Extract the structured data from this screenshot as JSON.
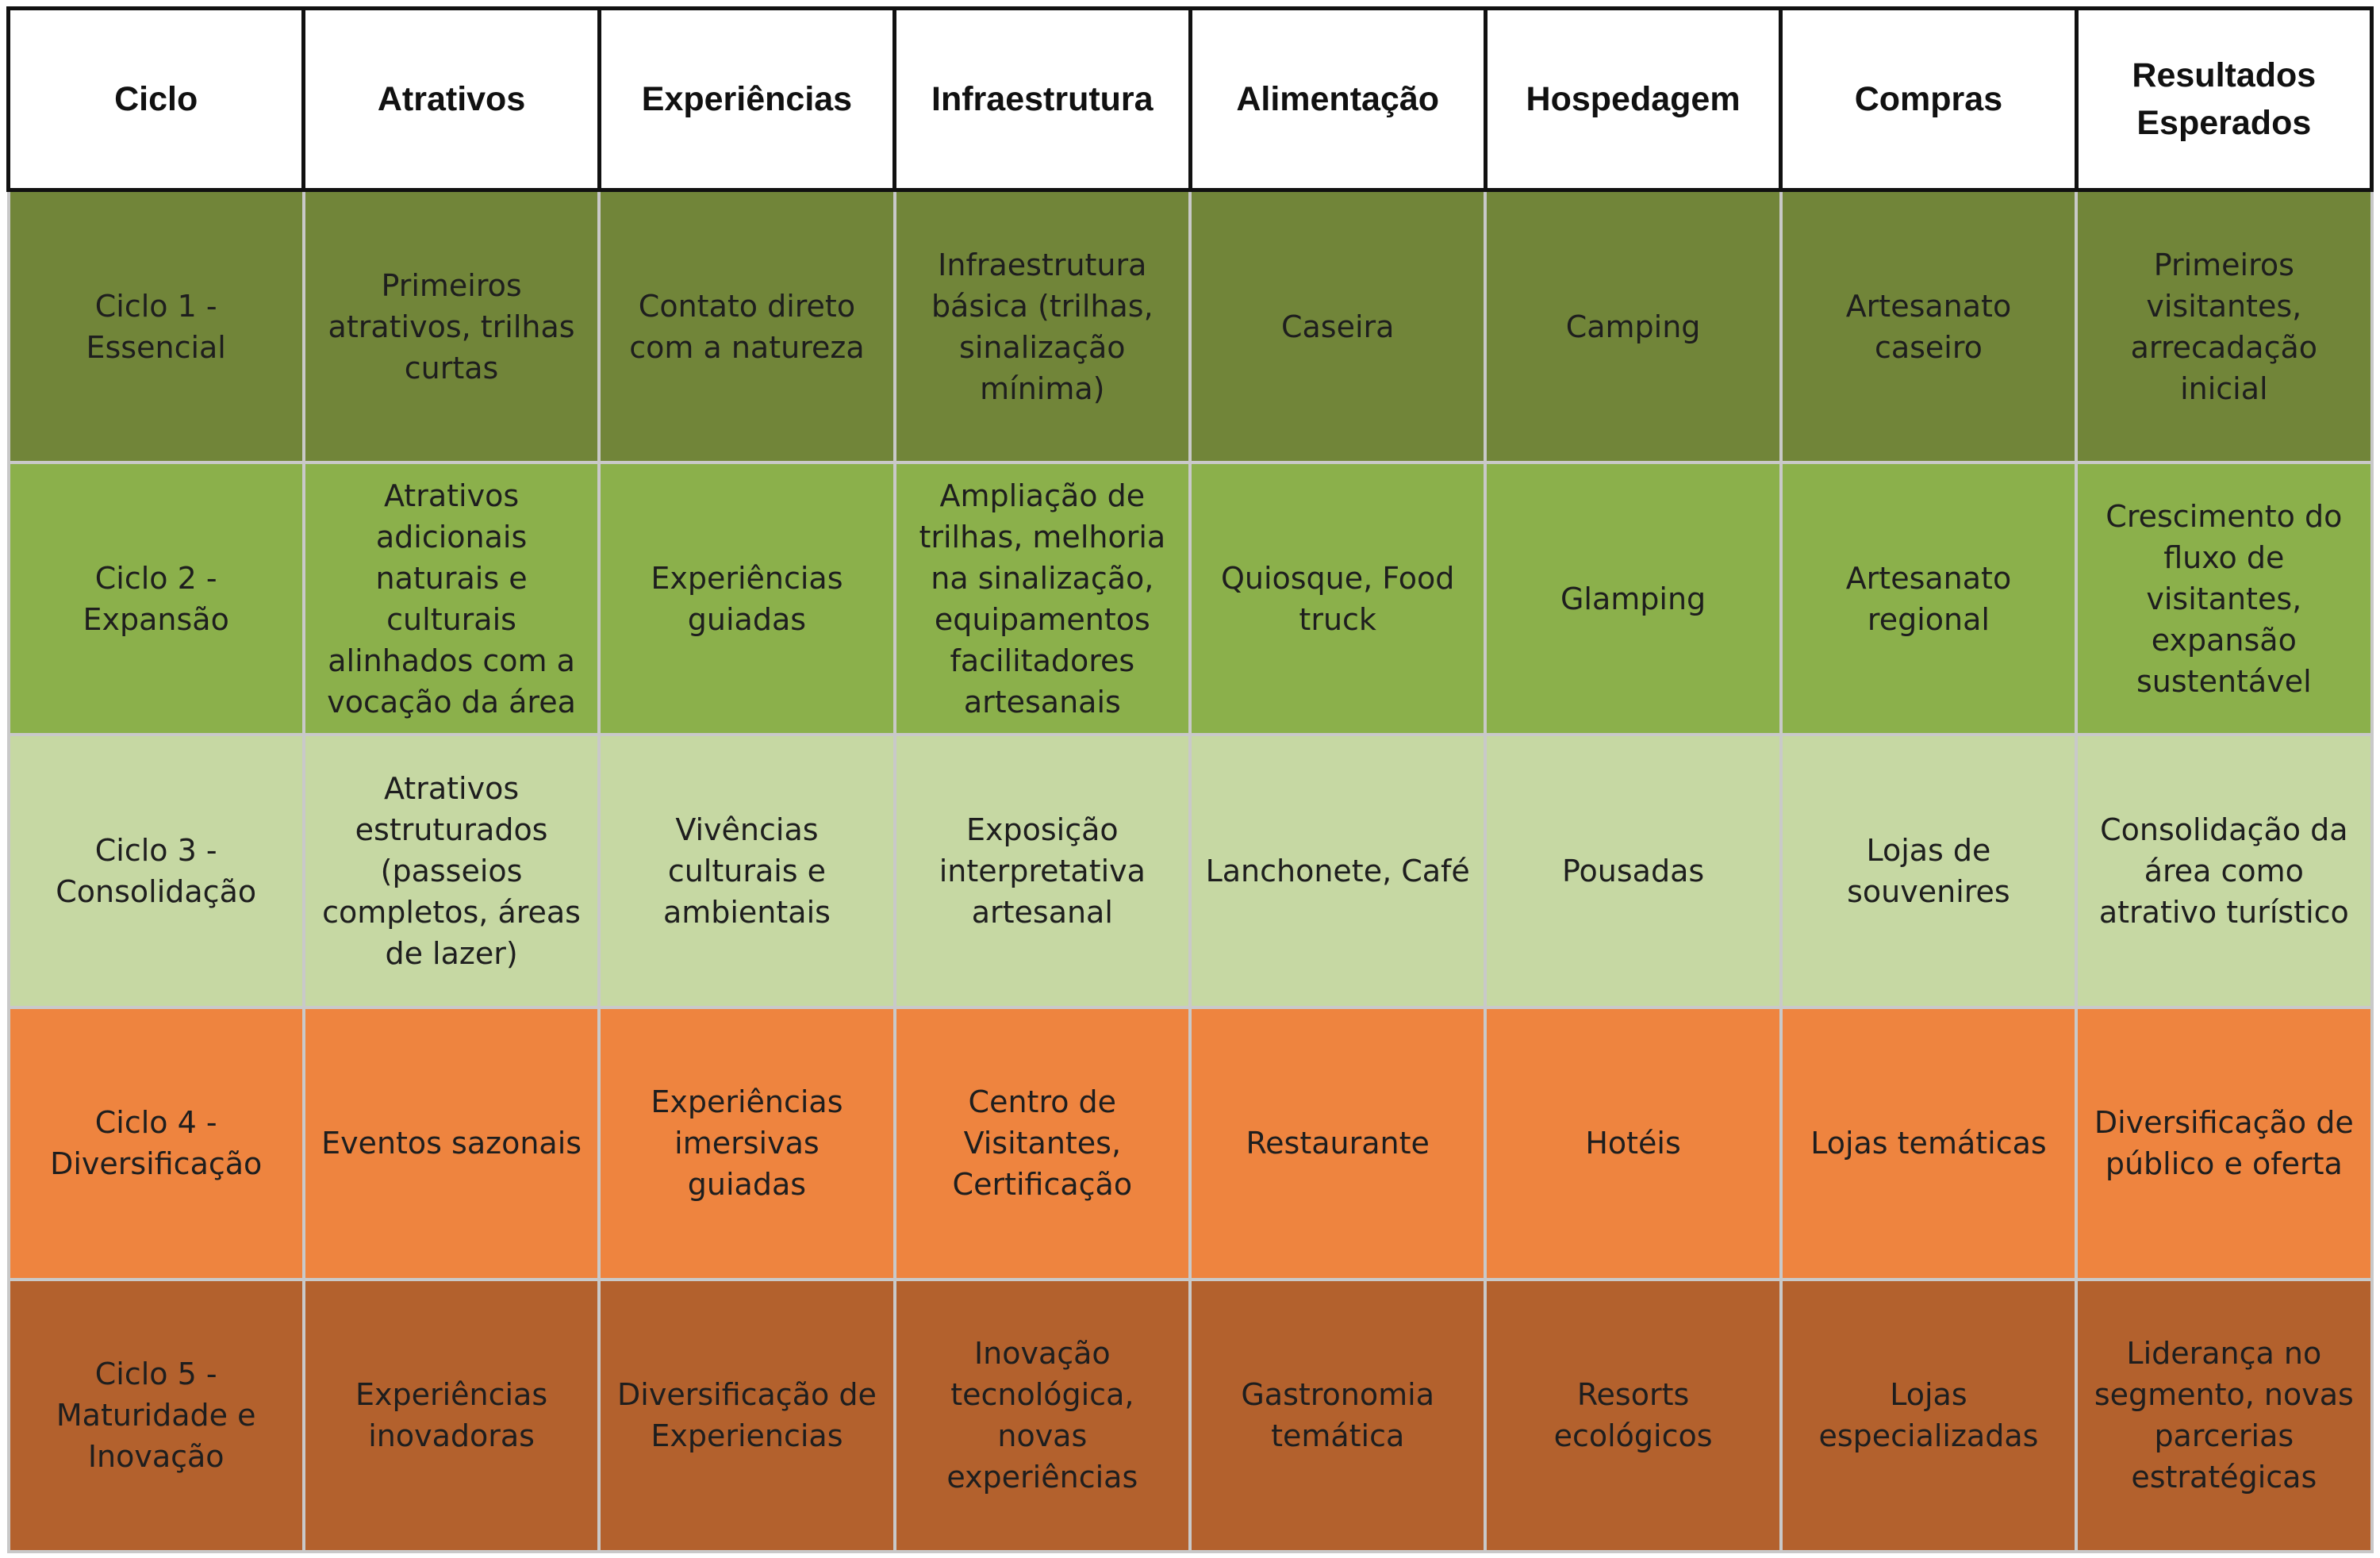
{
  "headers": [
    "Ciclo",
    "Atrativos",
    "Experiências",
    "Infraestrutura",
    "Alimentação",
    "Hospedagem",
    "Compras",
    "Resultados Esperados"
  ],
  "rows": [
    {
      "color": "#718539",
      "cells": [
        "Ciclo 1 - Essencial",
        "Primeiros atrativos, trilhas curtas",
        "Contato direto com a natureza",
        "Infraestrutura básica (trilhas, sinalização mínima)",
        "Caseira",
        "Camping",
        "Artesanato caseiro",
        "Primeiros visitantes, arrecadação inicial"
      ]
    },
    {
      "color": "#8bb04b",
      "cells": [
        "Ciclo 2 - Expansão",
        "Atrativos adicionais naturais e culturais alinhados com a vocação da área",
        "Experiências guiadas",
        "Ampliação de trilhas, melhoria na sinalização, equipamentos facilitadores artesanais",
        "Quiosque, Food truck",
        "Glamping",
        "Artesanato regional",
        "Crescimento do fluxo de visitantes, expansão sustentável"
      ]
    },
    {
      "color": "#c6d8a3",
      "cells": [
        "Ciclo 3 - Consolidação",
        "Atrativos estruturados (passeios completos, áreas de lazer)",
        "Vivências culturais e ambientais",
        "Exposição interpretativa artesanal",
        "Lanchonete, Café",
        "Pousadas",
        "Lojas de souvenires",
        "Consolidação da área como atrativo turístico"
      ]
    },
    {
      "color": "#ee843f",
      "cells": [
        "Ciclo 4 - Diversificação",
        "Eventos sazonais",
        "Experiências imersivas guiadas",
        "Centro de Visitantes, Certificação",
        "Restaurante",
        "Hotéis",
        "Lojas temáticas",
        "Diversificação de público e oferta"
      ]
    },
    {
      "color": "#b3612d",
      "cells": [
        "Ciclo 5 - Maturidade e Inovação",
        "Experiências inovadoras",
        "Diversificação de Experiencias",
        "Inovação tecnológica, novas experiências",
        "Gastronomia temática",
        "Resorts ecológicos",
        "Lojas especializadas",
        "Liderança no segmento, novas parcerias estratégicas"
      ]
    }
  ]
}
